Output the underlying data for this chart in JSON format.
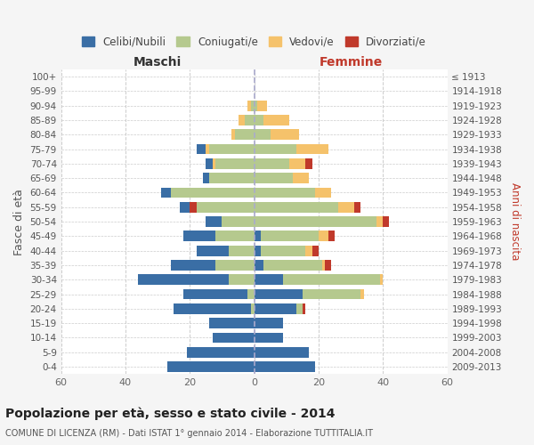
{
  "age_groups": [
    "100+",
    "95-99",
    "90-94",
    "85-89",
    "80-84",
    "75-79",
    "70-74",
    "65-69",
    "60-64",
    "55-59",
    "50-54",
    "45-49",
    "40-44",
    "35-39",
    "30-34",
    "25-29",
    "20-24",
    "15-19",
    "10-14",
    "5-9",
    "0-4"
  ],
  "birth_years": [
    "≤ 1913",
    "1914-1918",
    "1919-1923",
    "1924-1928",
    "1929-1933",
    "1934-1938",
    "1939-1943",
    "1944-1948",
    "1949-1953",
    "1954-1958",
    "1959-1963",
    "1964-1968",
    "1969-1973",
    "1974-1978",
    "1979-1983",
    "1984-1988",
    "1989-1993",
    "1994-1998",
    "1999-2003",
    "2004-2008",
    "2009-2013"
  ],
  "maschi": {
    "celibi": [
      0,
      0,
      0,
      0,
      0,
      3,
      2,
      2,
      3,
      3,
      5,
      10,
      10,
      14,
      28,
      20,
      24,
      14,
      13,
      21,
      27
    ],
    "coniugati": [
      0,
      0,
      1,
      3,
      6,
      14,
      12,
      14,
      26,
      18,
      10,
      12,
      8,
      12,
      8,
      2,
      1,
      0,
      0,
      0,
      0
    ],
    "vedovi": [
      0,
      0,
      1,
      2,
      1,
      1,
      1,
      0,
      0,
      0,
      0,
      0,
      0,
      0,
      0,
      0,
      0,
      0,
      0,
      0,
      0
    ],
    "divorziati": [
      0,
      0,
      0,
      0,
      0,
      0,
      0,
      0,
      0,
      2,
      0,
      0,
      0,
      0,
      0,
      0,
      0,
      0,
      0,
      0,
      0
    ]
  },
  "femmine": {
    "nubili": [
      0,
      0,
      0,
      0,
      0,
      0,
      0,
      0,
      0,
      0,
      0,
      2,
      2,
      3,
      9,
      15,
      13,
      9,
      9,
      17,
      19
    ],
    "coniugate": [
      0,
      0,
      1,
      3,
      5,
      13,
      11,
      12,
      19,
      26,
      38,
      18,
      14,
      18,
      30,
      18,
      2,
      0,
      0,
      0,
      0
    ],
    "vedove": [
      0,
      0,
      3,
      8,
      9,
      10,
      5,
      5,
      5,
      5,
      2,
      3,
      2,
      1,
      1,
      1,
      0,
      0,
      0,
      0,
      0
    ],
    "divorziate": [
      0,
      0,
      0,
      0,
      0,
      0,
      2,
      0,
      0,
      2,
      2,
      2,
      2,
      2,
      0,
      0,
      1,
      0,
      0,
      0,
      0
    ]
  },
  "colors": {
    "celibi": "#3a6ea5",
    "coniugati": "#b5c98e",
    "vedovi": "#f5c26b",
    "divorziati": "#c0392b"
  },
  "xlim": 60,
  "title": "Popolazione per età, sesso e stato civile - 2014",
  "subtitle": "COMUNE DI LICENZA (RM) - Dati ISTAT 1° gennaio 2014 - Elaborazione TUTTITALIA.IT",
  "ylabel_left": "Fasce di età",
  "ylabel_right": "Anni di nascita",
  "maschi_label": "Maschi",
  "femmine_label": "Femmine",
  "legend_labels": [
    "Celibi/Nubili",
    "Coniugati/e",
    "Vedovi/e",
    "Divorziati/e"
  ],
  "bg_color": "#f5f5f5",
  "plot_bg_color": "#ffffff"
}
